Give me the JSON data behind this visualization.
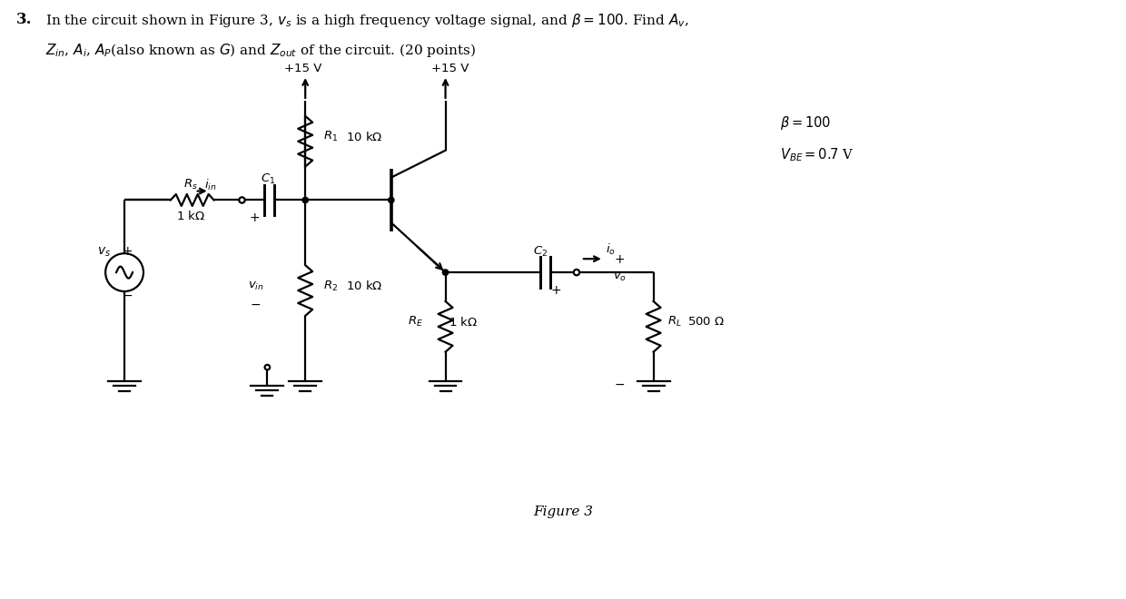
{
  "bg_color": "#ffffff",
  "line_color": "#000000",
  "text_color": "#000000",
  "figure_label": "Figure 3",
  "beta_label": "$\\beta =100$",
  "vbe_label": "$V_{BE} =0.7$ V",
  "title_bold": "3.",
  "title_rest": " In the circuit shown in Figure 3, $v_s$ is a high frequency voltage signal, and $\\beta = 100$. Find $A_v$,",
  "title_line2": "    $Z_{in}$, $A_i$, $A_P$(also known as $G$) and $Z_{out}$ of the circuit. (20 points)"
}
